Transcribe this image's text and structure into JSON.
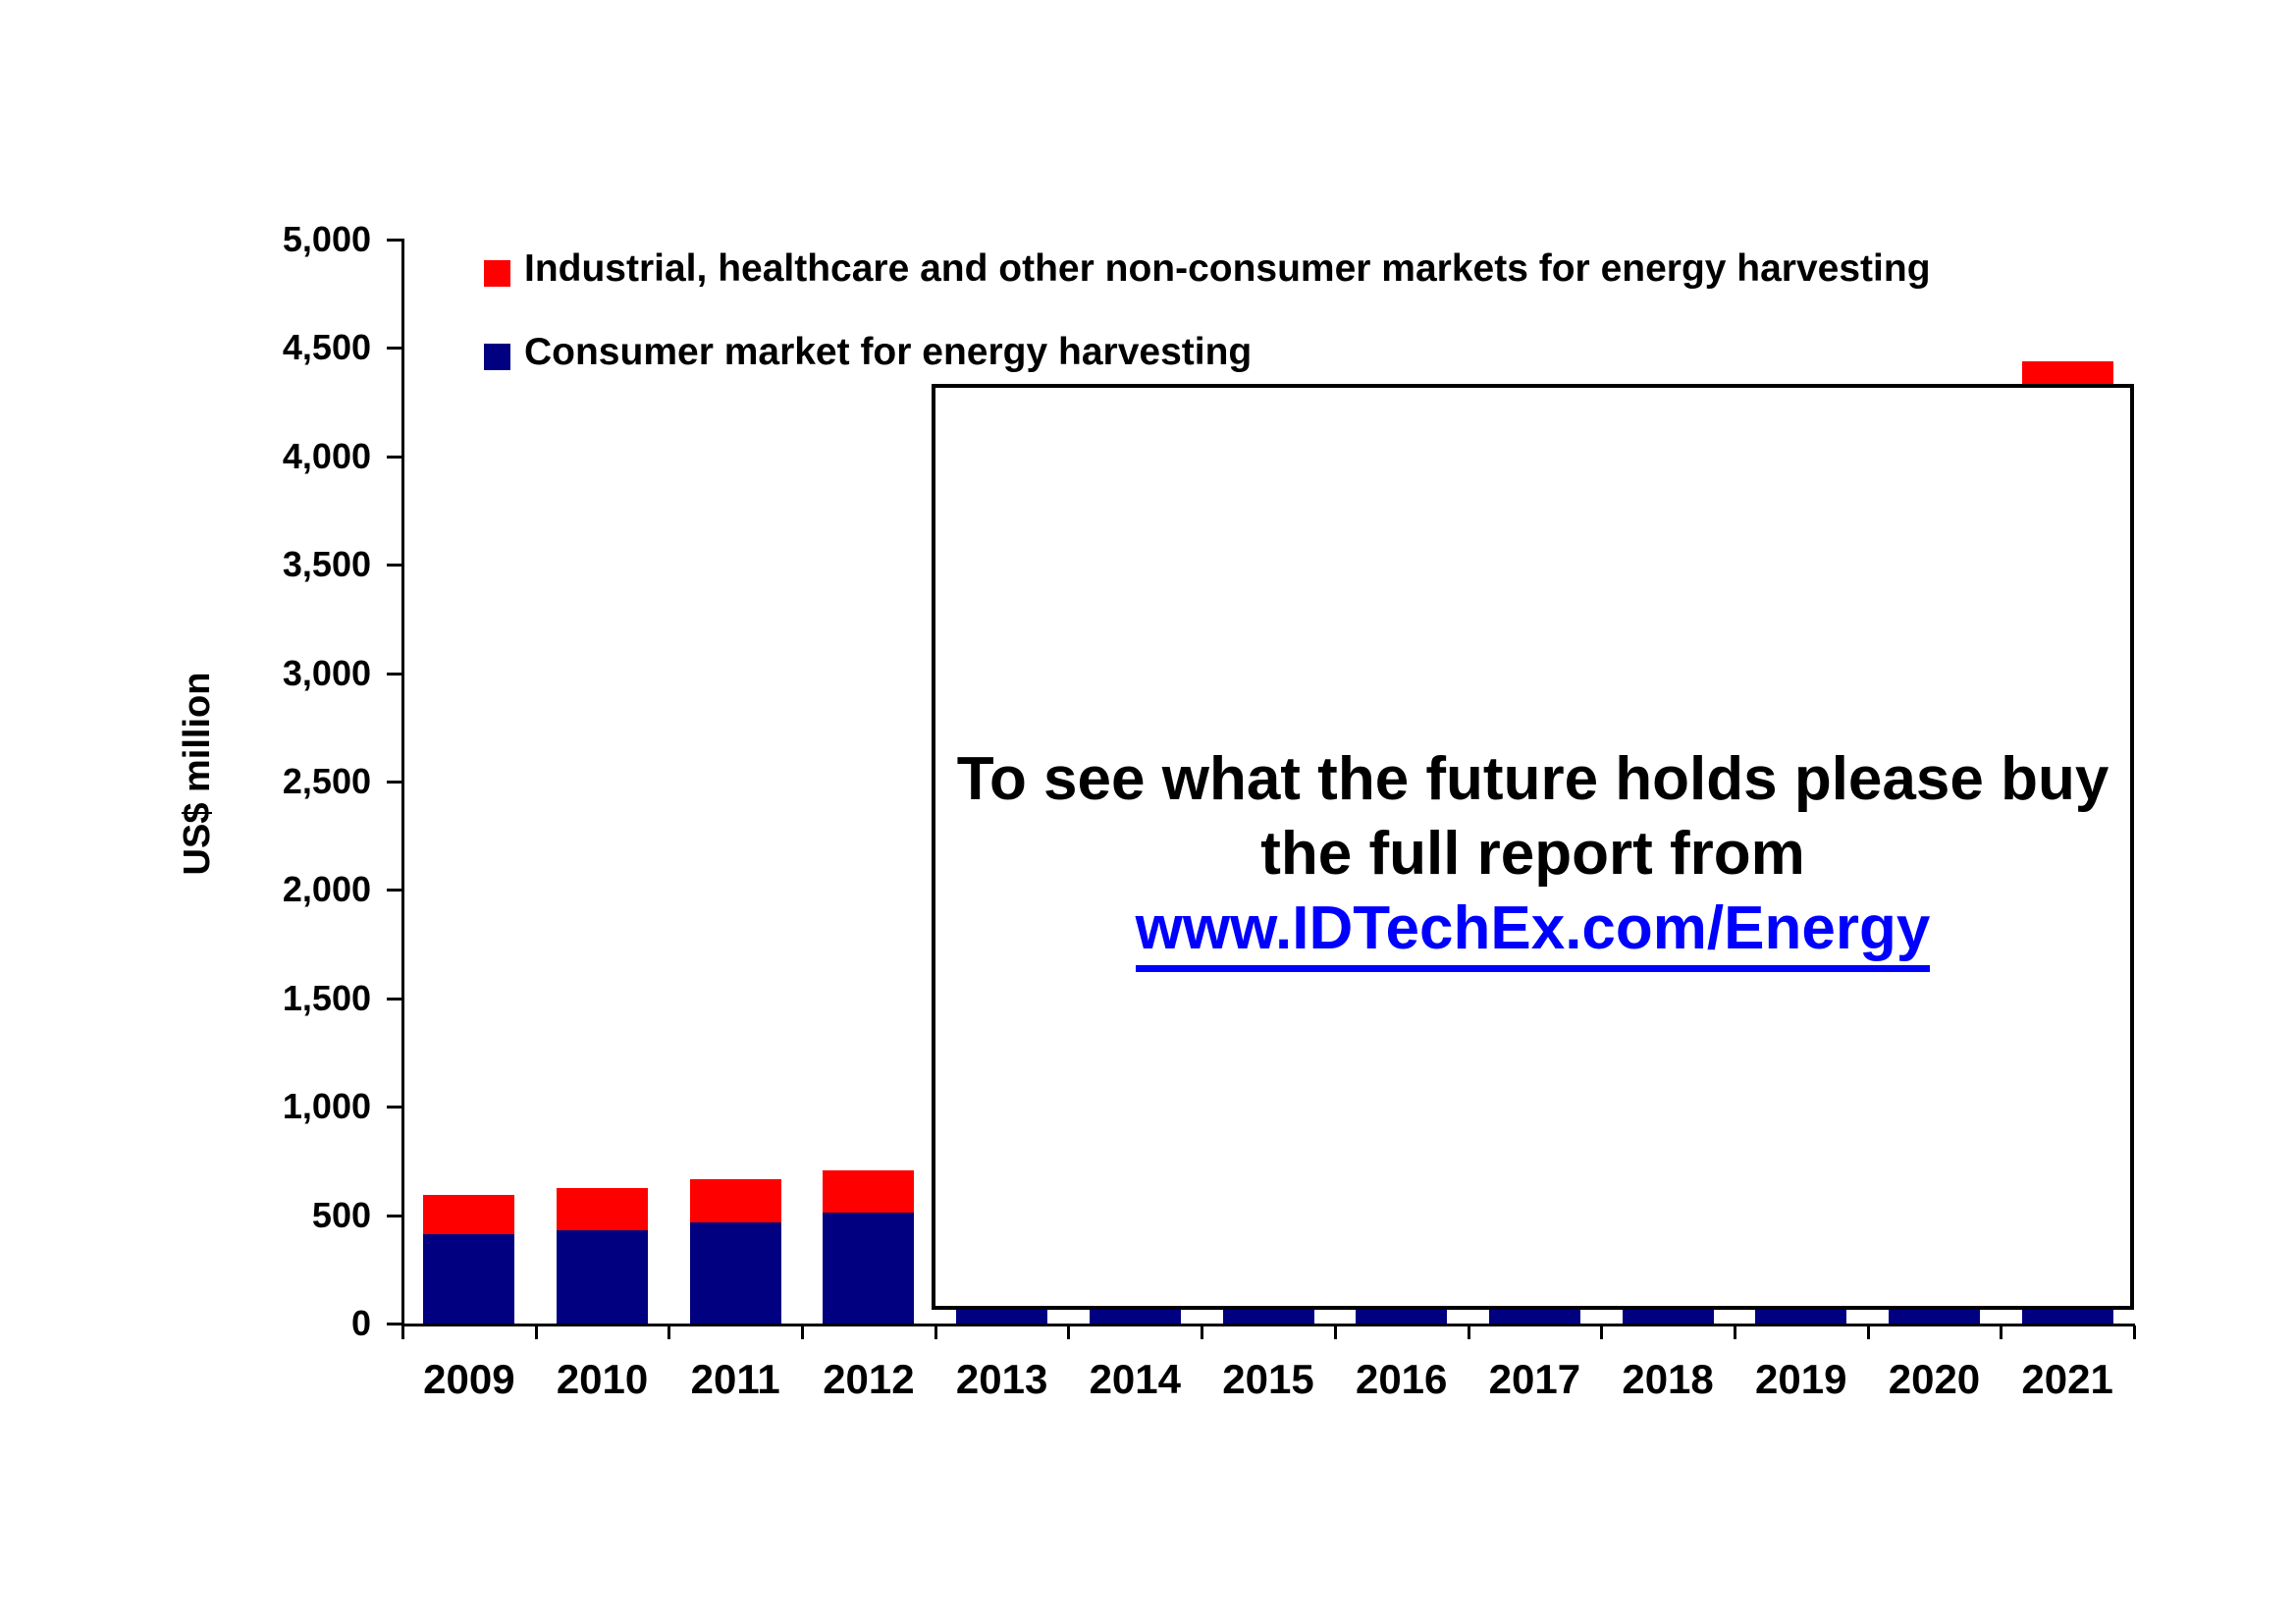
{
  "page": {
    "background": "#ffffff"
  },
  "y_axis": {
    "label": "US$ million",
    "tick_labels": [
      "0",
      "500",
      "1,000",
      "1,500",
      "2,000",
      "2,500",
      "3,000",
      "3,500",
      "4,000",
      "4,500",
      "5,000"
    ],
    "tick_values": [
      0,
      500,
      1000,
      1500,
      2000,
      2500,
      3000,
      3500,
      4000,
      4500,
      5000
    ]
  },
  "legend": {
    "items": [
      {
        "label": "Industrial, healthcare and other non-consumer markets for energy harvesting",
        "color": "#ff0000"
      },
      {
        "label": "Consumer market for energy harvesting",
        "color": "#000080"
      }
    ]
  },
  "overlay": {
    "line1": "To see what the future holds please buy",
    "line2": "the full report from",
    "link_text": "www.IDTechEx.com/Energy",
    "link_color": "#0000ff"
  },
  "chart_data": {
    "type": "bar",
    "stacked": true,
    "title": "",
    "xlabel": "",
    "ylabel": "US$ million",
    "ylim": [
      0,
      5000
    ],
    "ytick_step": 500,
    "grid": false,
    "legend_position": "top-left",
    "categories": [
      "2009",
      "2010",
      "2011",
      "2012",
      "2013",
      "2014",
      "2015",
      "2016",
      "2017",
      "2018",
      "2019",
      "2020",
      "2021"
    ],
    "series": [
      {
        "name": "Consumer market for energy harvesting",
        "color": "#000080",
        "values": [
          410,
          430,
          465,
          510,
          68,
          68,
          68,
          68,
          68,
          68,
          68,
          68,
          68
        ]
      },
      {
        "name": "Industrial, healthcare and other non-consumer markets for energy harvesting",
        "color": "#ff0000",
        "values": [
          185,
          195,
          200,
          195,
          0,
          0,
          0,
          0,
          0,
          0,
          0,
          0,
          4370
        ]
      }
    ],
    "visible_totals_note": "2013-2020 values are hidden behind a white promotional overlay; only ~70 US$M consumer stubs show below it. The 2021 bar top (~4,440 US$M, industrial segment) is visible above the overlay."
  }
}
